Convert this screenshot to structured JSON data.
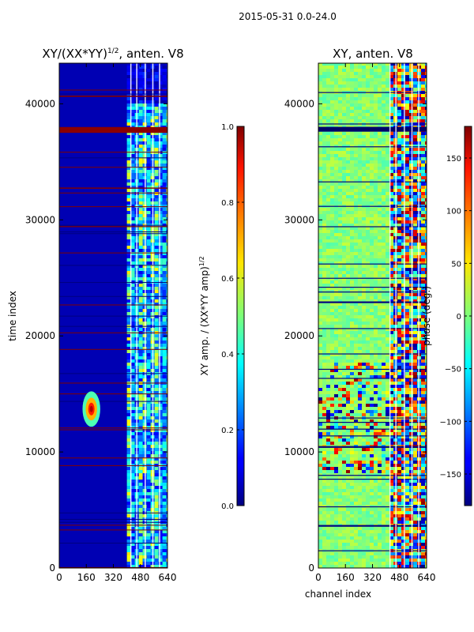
{
  "suptitle": "2015-05-31 0.0-24.0",
  "chart_data": [
    {
      "type": "heatmap",
      "panel": "amplitude",
      "title_main": "XY/(XX*YY)",
      "title_sup": "1/2",
      "title_tail": ", anten. V8",
      "xlabel": "",
      "ylabel": "time index",
      "xlim": [
        0,
        640
      ],
      "ylim": [
        0,
        43500
      ],
      "xticks": [
        "0",
        "160",
        "320",
        "480",
        "640"
      ],
      "yticks": [
        "0",
        "10000",
        "20000",
        "30000",
        "40000"
      ],
      "colormap": "jet",
      "colorbar": {
        "label_main": "XY amp. / (XX*YY amp)",
        "label_sup": "1/2",
        "range": [
          0.0,
          1.0
        ],
        "ticks": [
          "0.0",
          "0.2",
          "0.4",
          "0.6",
          "0.8",
          "1.0"
        ]
      },
      "features": {
        "background_value": 0.05,
        "bright_channel_range": [
          400,
          640
        ],
        "bright_row_range": [
          0,
          40000
        ],
        "saturated_band_time": [
          37500,
          38000
        ],
        "hot_spot": {
          "channel": 190,
          "time": 13700,
          "value": 0.95
        }
      }
    },
    {
      "type": "heatmap",
      "panel": "phase",
      "title_main": "XY, anten. V8",
      "xlabel": "channel index",
      "ylabel": "",
      "xlim": [
        0,
        640
      ],
      "ylim": [
        0,
        43500
      ],
      "xticks": [
        "0",
        "160",
        "320",
        "480",
        "640"
      ],
      "yticks": [
        "0",
        "10000",
        "20000",
        "30000",
        "40000"
      ],
      "colormap": "jet",
      "colorbar": {
        "label": "phase (deg.)",
        "range": [
          -180,
          180
        ],
        "ticks": [
          "−150",
          "−100",
          "−50",
          "0",
          "50",
          "100",
          "150"
        ]
      },
      "features": {
        "background_value": 0,
        "active_channel_range": [
          400,
          640
        ],
        "noisy_time_range": [
          8000,
          17500
        ],
        "dark_band_time": [
          37600,
          38000
        ]
      }
    }
  ]
}
